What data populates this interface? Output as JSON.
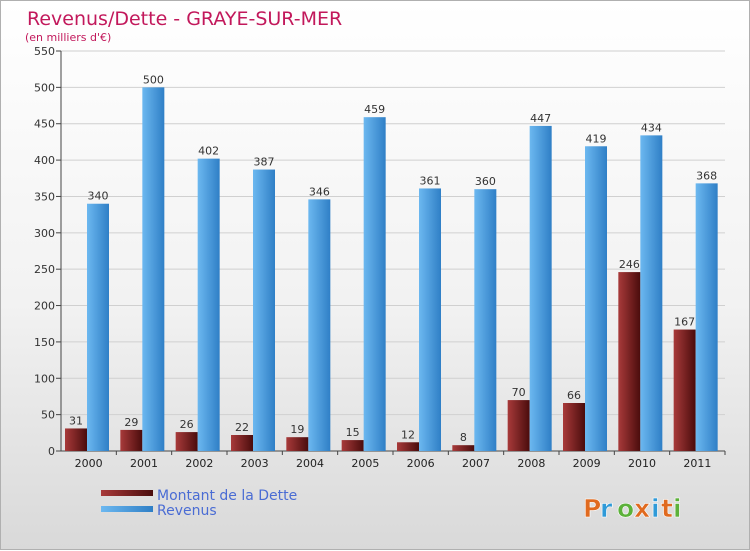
{
  "chart_data": {
    "type": "bar",
    "title": "Revenus/Dette - GRAYE-SUR-MER",
    "subtitle": "(en milliers d'€)",
    "categories": [
      "2000",
      "2001",
      "2002",
      "2003",
      "2004",
      "2005",
      "2006",
      "2007",
      "2008",
      "2009",
      "2010",
      "2011"
    ],
    "series": [
      {
        "name": "Montant de la Dette",
        "color": "#7a1f1f",
        "values": [
          31,
          29,
          26,
          22,
          19,
          15,
          12,
          8,
          70,
          66,
          246,
          167
        ]
      },
      {
        "name": "Revenus",
        "color": "#4aa3e8",
        "values": [
          340,
          500,
          402,
          387,
          346,
          459,
          361,
          360,
          447,
          419,
          434,
          368
        ]
      }
    ],
    "ylim": [
      0,
      550
    ],
    "yticks": [
      0,
      50,
      100,
      150,
      200,
      250,
      300,
      350,
      400,
      450,
      500,
      550
    ],
    "grid": true,
    "legend_position": "bottom-left"
  },
  "logo": {
    "letters": [
      "P",
      "r",
      "o",
      "x",
      "i",
      "t",
      "i"
    ],
    "colors": [
      "#e06a1f",
      "#2f9ad8",
      "#5cb13a",
      "#e06a1f",
      "#2f9ad8",
      "#e06a1f",
      "#5cb13a"
    ]
  }
}
